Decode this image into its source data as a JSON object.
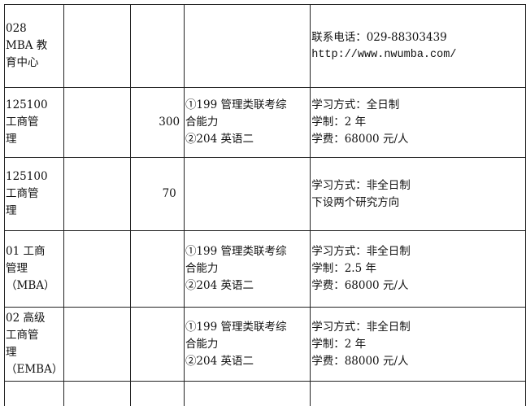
{
  "rows": [
    {
      "col1": [
        "028",
        "MBA 教",
        "育中心"
      ],
      "col2": "",
      "col3": "",
      "col4": [],
      "col5": [
        "联系电话：029-88303439",
        "http://www.nwumba.com/"
      ]
    },
    {
      "col1": [
        "125100",
        "工商管",
        "理"
      ],
      "col2": "",
      "col3": "300",
      "col4": [
        "①199 管理类联考综",
        "合能力",
        "②204 英语二"
      ],
      "col5": [
        "学习方式：全日制",
        "学制：2 年",
        "学费：68000 元/人"
      ]
    },
    {
      "col1": [
        "125100",
        "工商管",
        "理"
      ],
      "col2": "",
      "col3": "70",
      "col4": [],
      "col5": [
        "学习方式：非全日制",
        "下设两个研究方向"
      ]
    },
    {
      "col1": [
        "01 工商",
        "管理",
        "（MBA）"
      ],
      "col2": "",
      "col3": "",
      "col4": [
        "①199 管理类联考综",
        "合能力",
        "②204 英语二"
      ],
      "col5": [
        "学习方式：非全日制",
        "学制：2.5 年",
        "学费：68000 元/人"
      ]
    },
    {
      "col1": [
        "02 高级",
        "工商管",
        "理",
        "（EMBA）"
      ],
      "col2": "",
      "col3": "",
      "col4": [
        "①199 管理类联考综",
        "合能力",
        "②204 英语二"
      ],
      "col5": [
        "学习方式：非全日制",
        "学制：2 年",
        "学费：88000 元/人"
      ]
    }
  ]
}
